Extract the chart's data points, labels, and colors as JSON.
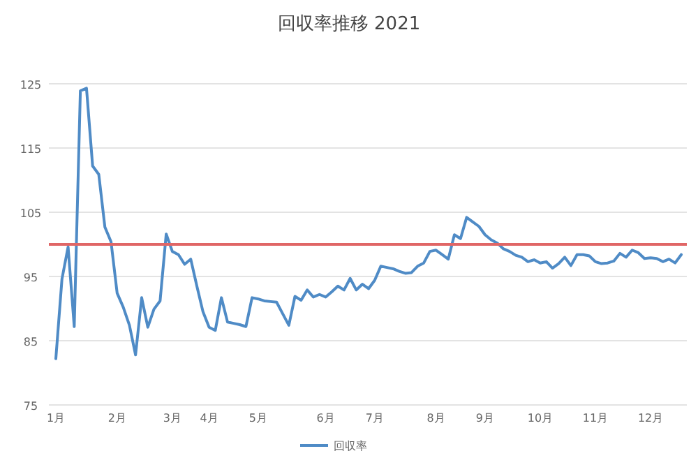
{
  "chart_data": {
    "type": "line",
    "title": "回収率推移 2021",
    "categories": [
      "1月",
      null,
      null,
      null,
      null,
      null,
      null,
      null,
      null,
      null,
      "2月",
      null,
      null,
      null,
      null,
      null,
      null,
      null,
      null,
      "3月",
      null,
      null,
      null,
      null,
      null,
      "4月",
      null,
      null,
      null,
      null,
      null,
      null,
      null,
      "5月",
      null,
      null,
      null,
      null,
      null,
      null,
      null,
      null,
      null,
      null,
      "6月",
      null,
      null,
      null,
      null,
      null,
      null,
      null,
      "7月",
      null,
      null,
      null,
      null,
      null,
      null,
      null,
      null,
      null,
      "8月",
      null,
      null,
      null,
      null,
      null,
      null,
      null,
      "9月",
      null,
      null,
      null,
      null,
      null,
      null,
      null,
      null,
      "10月",
      null,
      null,
      null,
      null,
      null,
      null,
      null,
      null,
      "11月",
      null,
      null,
      null,
      null,
      null,
      null,
      null,
      null,
      "12月",
      null,
      null,
      null,
      null,
      null
    ],
    "series": [
      {
        "name": "回収率",
        "color": "#4f8bc6",
        "values": [
          82.2,
          94.6,
          99.6,
          87.2,
          123.9,
          124.3,
          112.2,
          110.9,
          102.7,
          100.4,
          92.4,
          90.2,
          87.4,
          82.8,
          91.7,
          87.1,
          89.9,
          91.2,
          101.6,
          98.9,
          98.4,
          96.9,
          97.7,
          93.5,
          89.5,
          87.1,
          86.6,
          91.7,
          87.9,
          87.7,
          87.5,
          87.2,
          91.7,
          91.5,
          91.2,
          91.1,
          91.0,
          89.2,
          87.4,
          91.9,
          91.3,
          92.9,
          91.8,
          92.2,
          91.8,
          92.6,
          93.5,
          92.9,
          94.7,
          92.9,
          93.8,
          93.1,
          94.4,
          96.6,
          96.4,
          96.2,
          95.8,
          95.5,
          95.6,
          96.6,
          97.1,
          98.9,
          99.1,
          98.4,
          97.7,
          101.5,
          100.9,
          104.2,
          103.5,
          102.8,
          101.5,
          100.7,
          100.2,
          99.3,
          98.9,
          98.3,
          98.0,
          97.3,
          97.6,
          97.1,
          97.3,
          96.3,
          97.0,
          98.0,
          96.7,
          98.4,
          98.4,
          98.2,
          97.3,
          97.0,
          97.1,
          97.4,
          98.6,
          98.0,
          99.1,
          98.7,
          97.8,
          97.9,
          97.8,
          97.3,
          97.7,
          97.1,
          98.4
        ]
      }
    ],
    "ylim": [
      75,
      125
    ],
    "yticks": [
      75,
      85,
      95,
      105,
      115,
      125
    ],
    "ref_lines": [
      {
        "axis": "y",
        "value": 100,
        "color": "#e06666"
      }
    ],
    "grid": "y",
    "legend": "bottom",
    "marker": "none",
    "line_style": "solid"
  }
}
